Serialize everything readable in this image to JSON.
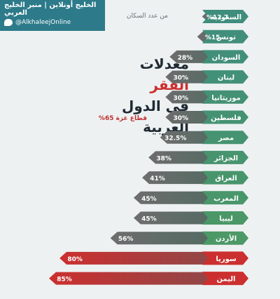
{
  "header": {
    "brand": "الخليج أونلاين | منبر الخليج العربي",
    "handle": "@AlkhaleejOnline",
    "twitter_icon": "twitter-bird-icon"
  },
  "title": {
    "line1_prefix": "معدلات ",
    "line1_accent": "الفقر",
    "line2": "في الدول العربية"
  },
  "annotations": {
    "note": "من عدد السكان",
    "gaza": "قطاع غزة 65%"
  },
  "colors": {
    "teal": "#3f8d7d",
    "green": "#4e9a62",
    "red": "#cc2f2f",
    "gray": "#6d6d6d",
    "bg": "#eef1f2"
  },
  "chart_data": {
    "type": "bar",
    "orientation": "horizontal",
    "categories": [
      "السعودية",
      "تونس",
      "السودان",
      "لبنان",
      "موريتانيا",
      "فلسطين",
      "مصر",
      "الجزائر",
      "العراق",
      "المغرب",
      "ليبيا",
      "الأردن",
      "سوريا",
      "اليمن"
    ],
    "values": [
      12.7,
      15,
      28,
      30,
      30,
      30,
      32.5,
      38,
      41,
      45,
      45,
      56,
      80,
      85
    ],
    "labels": [
      "%12.7",
      "%15",
      "28%",
      "30%",
      "30%",
      "30%",
      "32.5%",
      "38%",
      "41%",
      "45%",
      "45%",
      "56%",
      "80%",
      "85%"
    ],
    "title": "معدلات الفقر في الدول العربية",
    "xlim": [
      0,
      100
    ]
  }
}
